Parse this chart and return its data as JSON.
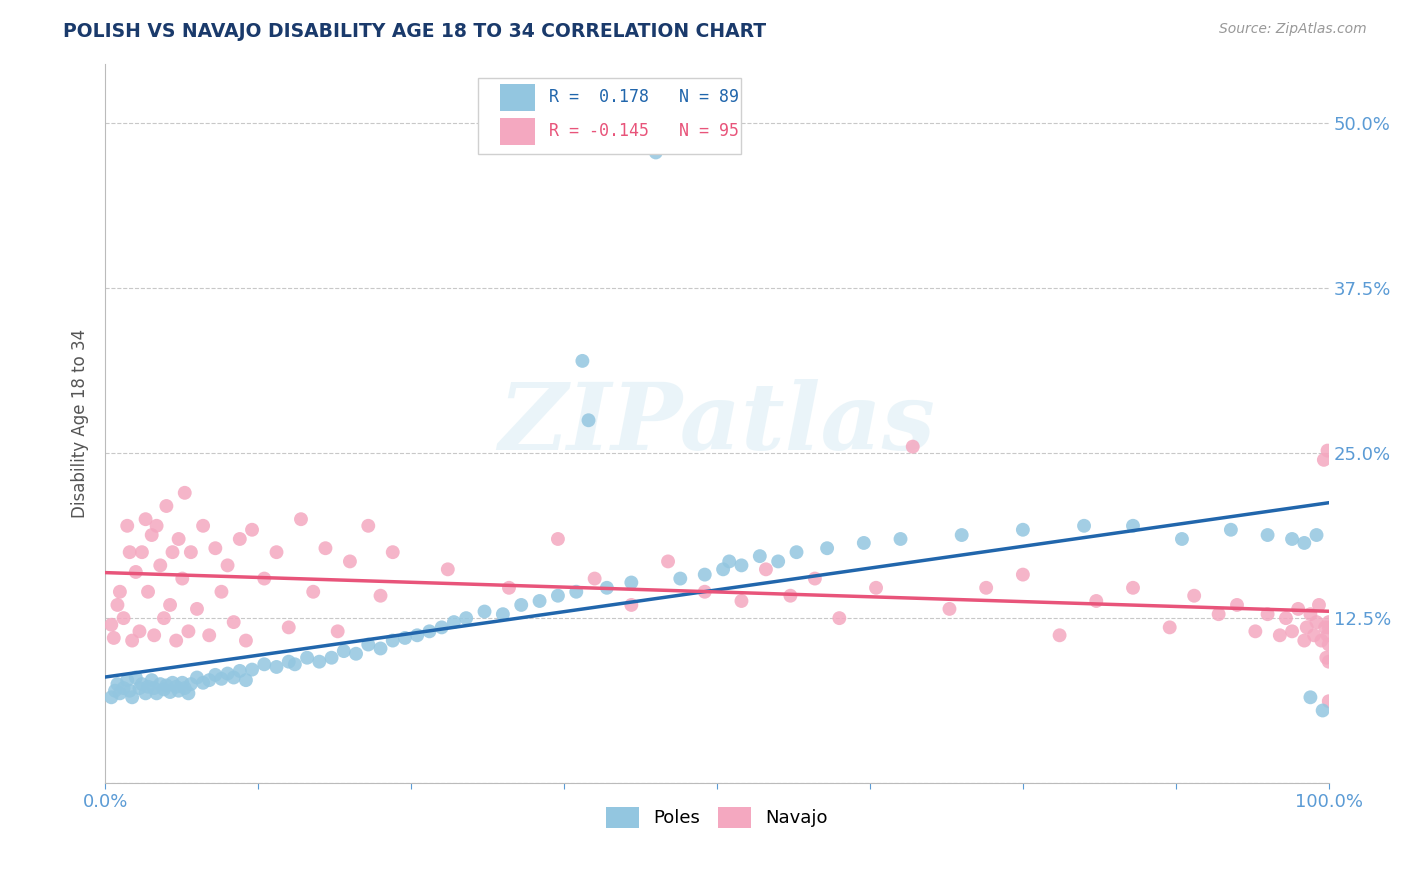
{
  "title": "POLISH VS NAVAJO DISABILITY AGE 18 TO 34 CORRELATION CHART",
  "source": "Source: ZipAtlas.com",
  "ylabel": "Disability Age 18 to 34",
  "xlim": [
    0.0,
    1.0
  ],
  "ylim": [
    0.0,
    0.545
  ],
  "xticks": [
    0.0,
    0.125,
    0.25,
    0.375,
    0.5,
    0.625,
    0.75,
    0.875,
    1.0
  ],
  "xticklabels": [
    "0.0%",
    "",
    "",
    "",
    "",
    "",
    "",
    "",
    "100.0%"
  ],
  "ytick_values": [
    0.0,
    0.125,
    0.25,
    0.375,
    0.5
  ],
  "ytick_labels": [
    "",
    "12.5%",
    "25.0%",
    "37.5%",
    "50.0%"
  ],
  "poles_color": "#93c6e0",
  "navajo_color": "#f4a8c0",
  "poles_line_color": "#2166ac",
  "navajo_line_color": "#e8547a",
  "R_poles": 0.178,
  "N_poles": 89,
  "R_navajo": -0.145,
  "N_navajo": 95,
  "background_color": "#ffffff",
  "grid_color": "#c8c8c8",
  "title_color": "#1a3a6b",
  "axis_label_color": "#555555",
  "tick_color": "#5b9bd5",
  "poles_x": [
    0.005,
    0.008,
    0.01,
    0.012,
    0.015,
    0.018,
    0.02,
    0.022,
    0.025,
    0.028,
    0.03,
    0.033,
    0.035,
    0.038,
    0.04,
    0.042,
    0.045,
    0.048,
    0.05,
    0.053,
    0.055,
    0.058,
    0.06,
    0.063,
    0.065,
    0.068,
    0.07,
    0.075,
    0.08,
    0.085,
    0.09,
    0.095,
    0.1,
    0.105,
    0.11,
    0.115,
    0.12,
    0.13,
    0.14,
    0.15,
    0.155,
    0.165,
    0.175,
    0.185,
    0.195,
    0.205,
    0.215,
    0.225,
    0.235,
    0.245,
    0.255,
    0.265,
    0.275,
    0.285,
    0.295,
    0.31,
    0.325,
    0.34,
    0.355,
    0.37,
    0.385,
    0.39,
    0.395,
    0.41,
    0.43,
    0.45,
    0.47,
    0.49,
    0.505,
    0.51,
    0.52,
    0.535,
    0.55,
    0.565,
    0.59,
    0.62,
    0.65,
    0.7,
    0.75,
    0.8,
    0.84,
    0.88,
    0.92,
    0.95,
    0.97,
    0.98,
    0.985,
    0.99,
    0.995
  ],
  "poles_y": [
    0.065,
    0.07,
    0.075,
    0.068,
    0.072,
    0.078,
    0.07,
    0.065,
    0.08,
    0.072,
    0.075,
    0.068,
    0.073,
    0.078,
    0.072,
    0.068,
    0.075,
    0.071,
    0.074,
    0.069,
    0.076,
    0.073,
    0.07,
    0.076,
    0.072,
    0.068,
    0.075,
    0.08,
    0.076,
    0.078,
    0.082,
    0.079,
    0.083,
    0.08,
    0.085,
    0.078,
    0.086,
    0.09,
    0.088,
    0.092,
    0.09,
    0.095,
    0.092,
    0.095,
    0.1,
    0.098,
    0.105,
    0.102,
    0.108,
    0.11,
    0.112,
    0.115,
    0.118,
    0.122,
    0.125,
    0.13,
    0.128,
    0.135,
    0.138,
    0.142,
    0.145,
    0.32,
    0.275,
    0.148,
    0.152,
    0.478,
    0.155,
    0.158,
    0.162,
    0.168,
    0.165,
    0.172,
    0.168,
    0.175,
    0.178,
    0.182,
    0.185,
    0.188,
    0.192,
    0.195,
    0.195,
    0.185,
    0.192,
    0.188,
    0.185,
    0.182,
    0.065,
    0.188,
    0.055
  ],
  "navajo_x": [
    0.005,
    0.007,
    0.01,
    0.012,
    0.015,
    0.018,
    0.02,
    0.022,
    0.025,
    0.028,
    0.03,
    0.033,
    0.035,
    0.038,
    0.04,
    0.042,
    0.045,
    0.048,
    0.05,
    0.053,
    0.055,
    0.058,
    0.06,
    0.063,
    0.065,
    0.068,
    0.07,
    0.075,
    0.08,
    0.085,
    0.09,
    0.095,
    0.1,
    0.105,
    0.11,
    0.115,
    0.12,
    0.13,
    0.14,
    0.15,
    0.16,
    0.17,
    0.18,
    0.19,
    0.2,
    0.215,
    0.225,
    0.235,
    0.28,
    0.33,
    0.37,
    0.4,
    0.43,
    0.46,
    0.49,
    0.52,
    0.54,
    0.56,
    0.58,
    0.6,
    0.63,
    0.66,
    0.69,
    0.72,
    0.75,
    0.78,
    0.81,
    0.84,
    0.87,
    0.89,
    0.91,
    0.925,
    0.94,
    0.95,
    0.96,
    0.965,
    0.97,
    0.975,
    0.98,
    0.982,
    0.985,
    0.988,
    0.99,
    0.992,
    0.994,
    0.996,
    0.997,
    0.998,
    0.999,
    0.999,
    1.0,
    1.0,
    1.0,
    1.0,
    1.0
  ],
  "navajo_y": [
    0.12,
    0.11,
    0.135,
    0.145,
    0.125,
    0.195,
    0.175,
    0.108,
    0.16,
    0.115,
    0.175,
    0.2,
    0.145,
    0.188,
    0.112,
    0.195,
    0.165,
    0.125,
    0.21,
    0.135,
    0.175,
    0.108,
    0.185,
    0.155,
    0.22,
    0.115,
    0.175,
    0.132,
    0.195,
    0.112,
    0.178,
    0.145,
    0.165,
    0.122,
    0.185,
    0.108,
    0.192,
    0.155,
    0.175,
    0.118,
    0.2,
    0.145,
    0.178,
    0.115,
    0.168,
    0.195,
    0.142,
    0.175,
    0.162,
    0.148,
    0.185,
    0.155,
    0.135,
    0.168,
    0.145,
    0.138,
    0.162,
    0.142,
    0.155,
    0.125,
    0.148,
    0.255,
    0.132,
    0.148,
    0.158,
    0.112,
    0.138,
    0.148,
    0.118,
    0.142,
    0.128,
    0.135,
    0.115,
    0.128,
    0.112,
    0.125,
    0.115,
    0.132,
    0.108,
    0.118,
    0.128,
    0.112,
    0.122,
    0.135,
    0.108,
    0.245,
    0.118,
    0.095,
    0.112,
    0.252,
    0.118,
    0.092,
    0.105,
    0.062,
    0.122
  ],
  "watermark_text": "ZIPatlas",
  "figsize": [
    14.06,
    8.92
  ],
  "dpi": 100
}
